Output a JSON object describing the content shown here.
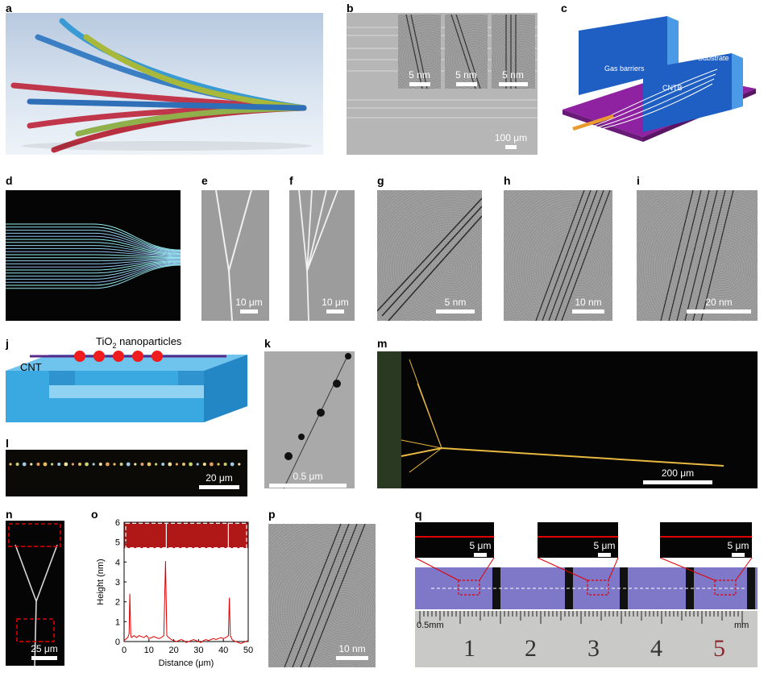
{
  "panels": {
    "a": {
      "letter": "a"
    },
    "b": {
      "letter": "b",
      "inset_scale": [
        "5 nm",
        "5 nm",
        "5 nm"
      ],
      "scale": "100 μm"
    },
    "c": {
      "letter": "c",
      "gas_barriers": "Gas barriers",
      "substrate": "Substrate",
      "cntb": "CNTB"
    },
    "d": {
      "letter": "d"
    },
    "e": {
      "letter": "e",
      "scale": "10 μm"
    },
    "f": {
      "letter": "f",
      "scale": "10 μm"
    },
    "g": {
      "letter": "g",
      "scale": "5 nm"
    },
    "h": {
      "letter": "h",
      "scale": "10 nm"
    },
    "i": {
      "letter": "i",
      "scale": "20 nm"
    },
    "j": {
      "letter": "j",
      "tio2_main": "TiO",
      "tio2_sub": "2",
      "tio2_rest": " nanoparticles",
      "cnt": "CNT"
    },
    "k": {
      "letter": "k",
      "scale": "0.5 μm"
    },
    "l": {
      "letter": "l",
      "scale": "20 μm"
    },
    "m": {
      "letter": "m",
      "scale": "200 μm"
    },
    "n": {
      "letter": "n",
      "scale": "25 μm"
    },
    "o": {
      "letter": "o"
    },
    "p": {
      "letter": "p",
      "scale": "10 nm"
    },
    "q": {
      "letter": "q",
      "inset_scale": [
        "5 μm",
        "5 μm",
        "5 μm"
      ],
      "ruler_left": "0.5mm",
      "ruler_right": "mm",
      "ruler_numbers": [
        "1",
        "2",
        "3",
        "4",
        "5"
      ]
    }
  },
  "chart_data": {
    "type": "line",
    "xlabel": "Distance (μm)",
    "ylabel": "Height (nm)",
    "xlim": [
      0,
      50
    ],
    "ylim": [
      0,
      6
    ],
    "xticks": [
      "0",
      "10",
      "20",
      "30",
      "40",
      "50"
    ],
    "yticks": [
      "0",
      "1",
      "2",
      "3",
      "4",
      "5",
      "6"
    ],
    "series": [
      {
        "color": "#e00000",
        "x": [
          0,
          0.5,
          1,
          1.5,
          2,
          2.3,
          2.7,
          3,
          4,
          5,
          6,
          7,
          8,
          9,
          10,
          11,
          12,
          13,
          14,
          15,
          16,
          16.7,
          17.2,
          18,
          19,
          20,
          21,
          22,
          23,
          24,
          25,
          26,
          27,
          28,
          29,
          30,
          31,
          32,
          33,
          34,
          35,
          36,
          37,
          38,
          39,
          40,
          41,
          42,
          42.4,
          42.8,
          43.5,
          44,
          45,
          46,
          47,
          48,
          49,
          50
        ],
        "y": [
          0.05,
          0.1,
          0.15,
          0.2,
          0.4,
          2.4,
          0.3,
          0.2,
          0.3,
          0.2,
          0.3,
          0.25,
          0.2,
          0.3,
          0.15,
          0.2,
          0.25,
          0.2,
          0.15,
          0.2,
          0.3,
          4.05,
          0.3,
          0.2,
          0.1,
          0.05,
          0.0,
          0.05,
          0.1,
          0.05,
          -0.05,
          0.0,
          0.05,
          0.1,
          0.05,
          0.0,
          -0.05,
          0.05,
          0.1,
          0.05,
          0.1,
          0.15,
          0.1,
          0.15,
          0.2,
          0.15,
          0.2,
          0.3,
          2.2,
          0.3,
          0.1,
          0.05,
          0.0,
          -0.05,
          -0.1,
          -0.05,
          0.0,
          0.05
        ]
      }
    ]
  }
}
